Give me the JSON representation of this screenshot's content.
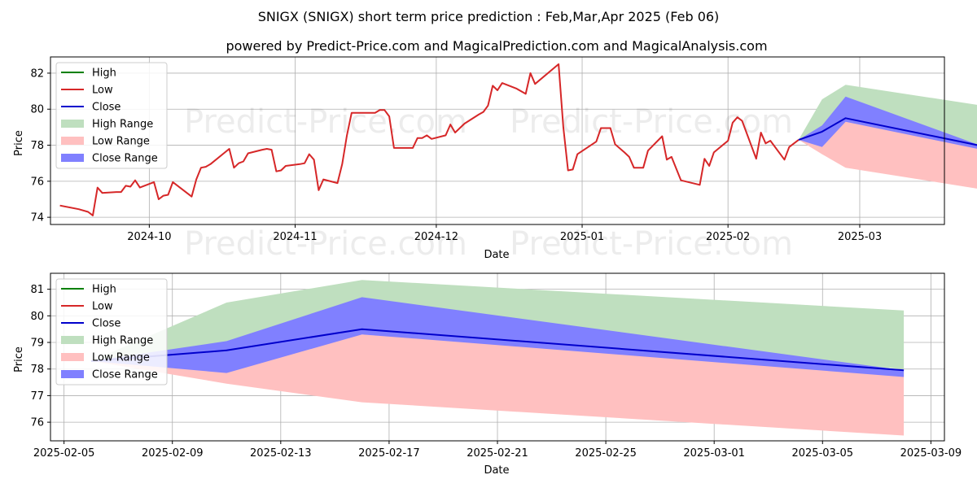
{
  "header": {
    "title": "SNIGX (SNIGX) short term price prediction : Feb,Mar,Apr 2025 (Feb 06)",
    "subtitle": "powered by Predict-Price.com and MagicalPrediction.com and MagicalAnalysis.com"
  },
  "watermark": "Predict-Price.com",
  "colors": {
    "high": "#008000",
    "low": "#d62728",
    "close": "#0000cc",
    "high_range": "#bfdfbf",
    "low_range": "#ffc0c0",
    "close_range": "#8080ff"
  },
  "chart_data": [
    {
      "type": "line",
      "xlabel": "Date",
      "ylabel": "Price",
      "x_ticks": [
        "2024-10",
        "2024-11",
        "2024-12",
        "2025-01",
        "2025-02",
        "2025-03"
      ],
      "x_tick_dates": [
        "2024-10-01",
        "2024-11-01",
        "2024-12-01",
        "2025-01-01",
        "2025-02-01",
        "2025-03-01"
      ],
      "xlim": [
        "2024-09-10",
        "2025-03-19"
      ],
      "y_ticks": [
        74,
        76,
        78,
        80,
        82
      ],
      "ylim": [
        73.6,
        82.9
      ],
      "grid": true,
      "legend": "top-left",
      "legend_entries": [
        "High",
        "Low",
        "Close",
        "High Range",
        "Low Range",
        "Close Range"
      ],
      "history": {
        "name": "Low",
        "points": [
          [
            "2024-09-12",
            74.65
          ],
          [
            "2024-09-16",
            74.45
          ],
          [
            "2024-09-18",
            74.3
          ],
          [
            "2024-09-19",
            74.1
          ],
          [
            "2024-09-20",
            75.65
          ],
          [
            "2024-09-21",
            75.35
          ],
          [
            "2024-09-24",
            75.4
          ],
          [
            "2024-09-25",
            75.4
          ],
          [
            "2024-09-26",
            75.75
          ],
          [
            "2024-09-27",
            75.7
          ],
          [
            "2024-09-28",
            76.05
          ],
          [
            "2024-09-29",
            75.65
          ],
          [
            "2024-10-02",
            75.95
          ],
          [
            "2024-10-03",
            75.0
          ],
          [
            "2024-10-04",
            75.2
          ],
          [
            "2024-10-05",
            75.25
          ],
          [
            "2024-10-06",
            75.95
          ],
          [
            "2024-10-10",
            75.15
          ],
          [
            "2024-10-11",
            76.1
          ],
          [
            "2024-10-12",
            76.75
          ],
          [
            "2024-10-13",
            76.8
          ],
          [
            "2024-10-14",
            76.95
          ],
          [
            "2024-10-18",
            77.8
          ],
          [
            "2024-10-19",
            76.75
          ],
          [
            "2024-10-20",
            77.0
          ],
          [
            "2024-10-21",
            77.1
          ],
          [
            "2024-10-22",
            77.55
          ],
          [
            "2024-10-25",
            77.75
          ],
          [
            "2024-10-26",
            77.8
          ],
          [
            "2024-10-27",
            77.75
          ],
          [
            "2024-10-28",
            76.55
          ],
          [
            "2024-10-29",
            76.6
          ],
          [
            "2024-10-30",
            76.85
          ],
          [
            "2024-11-02",
            76.95
          ],
          [
            "2024-11-03",
            77.0
          ],
          [
            "2024-11-04",
            77.5
          ],
          [
            "2024-11-05",
            77.2
          ],
          [
            "2024-11-06",
            75.5
          ],
          [
            "2024-11-07",
            76.1
          ],
          [
            "2024-11-10",
            75.9
          ],
          [
            "2024-11-11",
            76.95
          ],
          [
            "2024-11-12",
            78.55
          ],
          [
            "2024-11-13",
            79.8
          ],
          [
            "2024-11-17",
            79.8
          ],
          [
            "2024-11-18",
            79.8
          ],
          [
            "2024-11-19",
            79.95
          ],
          [
            "2024-11-20",
            79.95
          ],
          [
            "2024-11-21",
            79.6
          ],
          [
            "2024-11-22",
            77.85
          ],
          [
            "2024-11-25",
            77.85
          ],
          [
            "2024-11-26",
            77.85
          ],
          [
            "2024-11-27",
            78.4
          ],
          [
            "2024-11-28",
            78.4
          ],
          [
            "2024-11-29",
            78.55
          ],
          [
            "2024-11-30",
            78.35
          ],
          [
            "2024-12-03",
            78.55
          ],
          [
            "2024-12-04",
            79.15
          ],
          [
            "2024-12-05",
            78.7
          ],
          [
            "2024-12-07",
            79.2
          ],
          [
            "2024-12-10",
            79.7
          ],
          [
            "2024-12-11",
            79.85
          ],
          [
            "2024-12-12",
            80.2
          ],
          [
            "2024-12-13",
            81.3
          ],
          [
            "2024-12-14",
            81.05
          ],
          [
            "2024-12-15",
            81.45
          ],
          [
            "2024-12-18",
            81.15
          ],
          [
            "2024-12-20",
            80.85
          ],
          [
            "2024-12-21",
            82.0
          ],
          [
            "2024-12-22",
            81.4
          ],
          [
            "2024-12-27",
            82.5
          ],
          [
            "2024-12-28",
            79.0
          ],
          [
            "2024-12-29",
            76.6
          ],
          [
            "2024-12-30",
            76.65
          ],
          [
            "2024-12-31",
            77.5
          ],
          [
            "2025-01-04",
            78.2
          ],
          [
            "2025-01-05",
            78.95
          ],
          [
            "2025-01-07",
            78.95
          ],
          [
            "2025-01-08",
            78.05
          ],
          [
            "2025-01-10",
            77.6
          ],
          [
            "2025-01-11",
            77.35
          ],
          [
            "2025-01-12",
            76.75
          ],
          [
            "2025-01-14",
            76.75
          ],
          [
            "2025-01-15",
            77.7
          ],
          [
            "2025-01-18",
            78.5
          ],
          [
            "2025-01-19",
            77.2
          ],
          [
            "2025-01-20",
            77.35
          ],
          [
            "2025-01-22",
            76.05
          ],
          [
            "2025-01-26",
            75.8
          ],
          [
            "2025-01-27",
            77.25
          ],
          [
            "2025-01-28",
            76.85
          ],
          [
            "2025-01-29",
            77.6
          ],
          [
            "2025-02-01",
            78.25
          ],
          [
            "2025-02-02",
            79.25
          ],
          [
            "2025-02-03",
            79.55
          ],
          [
            "2025-02-04",
            79.35
          ],
          [
            "2025-02-07",
            77.25
          ],
          [
            "2025-02-08",
            78.7
          ],
          [
            "2025-02-09",
            78.1
          ],
          [
            "2025-02-10",
            78.25
          ],
          [
            "2025-02-13",
            77.2
          ],
          [
            "2025-02-14",
            77.9
          ],
          [
            "2025-02-16",
            78.3
          ]
        ]
      },
      "forecast": {
        "dates": [
          "2025-02-16",
          "2025-02-21",
          "2025-02-26",
          "2025-03-27"
        ],
        "close": [
          78.3,
          78.75,
          79.5,
          77.95
        ],
        "high_range_upper": [
          78.3,
          80.55,
          81.35,
          80.2
        ],
        "high_range_lower": [
          78.3,
          78.75,
          79.5,
          78.0
        ],
        "low_range_upper": [
          78.3,
          78.6,
          79.3,
          77.9
        ],
        "low_range_lower": [
          78.3,
          77.5,
          76.75,
          75.55
        ],
        "close_range_upper": [
          78.3,
          79.1,
          80.7,
          77.95
        ],
        "close_range_lower": [
          78.3,
          77.9,
          79.3,
          77.75
        ]
      }
    },
    {
      "type": "line",
      "xlabel": "Date",
      "ylabel": "Price",
      "x_ticks": [
        "2025-02-05",
        "2025-02-09",
        "2025-02-13",
        "2025-02-17",
        "2025-02-21",
        "2025-02-25",
        "2025-03-01",
        "2025-03-05",
        "2025-03-09"
      ],
      "x_tick_dates": [
        "2025-02-05",
        "2025-02-09",
        "2025-02-13",
        "2025-02-17",
        "2025-02-21",
        "2025-02-25",
        "2025-03-01",
        "2025-03-05",
        "2025-03-09"
      ],
      "xlim": [
        "2025-02-04T12:00",
        "2025-03-09T12:00"
      ],
      "y_ticks": [
        76,
        77,
        78,
        79,
        80,
        81
      ],
      "ylim": [
        75.3,
        81.6
      ],
      "grid": true,
      "legend": "top-left",
      "legend_entries": [
        "High",
        "Low",
        "Close",
        "High Range",
        "Low Range",
        "Close Range"
      ],
      "forecast": {
        "dates": [
          "2025-02-06",
          "2025-02-11",
          "2025-02-16",
          "2025-03-08"
        ],
        "close": [
          78.3,
          78.7,
          79.5,
          77.95
        ],
        "high_range_upper": [
          78.3,
          80.5,
          81.35,
          80.2
        ],
        "high_range_lower": [
          78.3,
          79.0,
          79.5,
          78.0
        ],
        "low_range_upper": [
          78.3,
          78.6,
          79.3,
          77.9
        ],
        "low_range_lower": [
          78.3,
          77.45,
          76.75,
          75.5
        ],
        "close_range_upper": [
          78.3,
          79.05,
          80.7,
          77.95
        ],
        "close_range_lower": [
          78.3,
          77.85,
          79.3,
          77.7
        ]
      }
    }
  ]
}
